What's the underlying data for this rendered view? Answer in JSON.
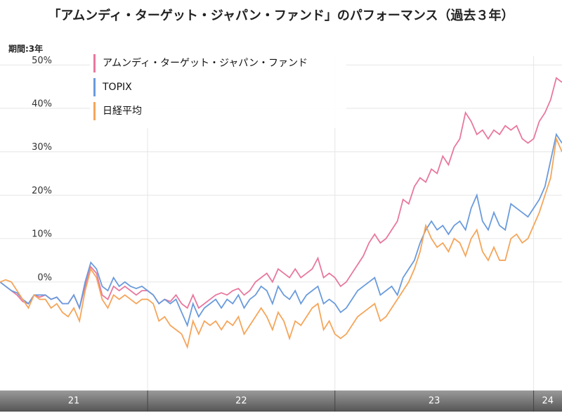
{
  "chart_data": {
    "type": "line",
    "title": "「アムンディ・ターゲット・ジャパン・ファンド」のパフォーマンス（過去３年）",
    "subtitle": "期間:3年",
    "xlim": [
      0,
      99
    ],
    "xticks": [
      {
        "value": 0,
        "label": "21"
      },
      {
        "value": 26,
        "label": "22"
      },
      {
        "value": 59,
        "label": "23"
      },
      {
        "value": 94,
        "label": "24"
      }
    ],
    "ylim": [
      -25,
      52
    ],
    "yticks": [
      {
        "value": 0,
        "label": "0%"
      },
      {
        "value": 10,
        "label": "10%"
      },
      {
        "value": 20,
        "label": "20%"
      },
      {
        "value": 30,
        "label": "30%"
      },
      {
        "value": 40,
        "label": "40%"
      },
      {
        "value": 50,
        "label": "50%"
      }
    ],
    "grid": true,
    "legend": "top-left",
    "series": [
      {
        "name": "アムンディ・ターゲット・ジャパン・ファンド",
        "color": "#e8789e",
        "values": [
          0,
          -1,
          -2,
          -3,
          -4.5,
          -5,
          -3,
          -3.5,
          -3,
          -4,
          -3.5,
          -5,
          -5,
          -3,
          -6,
          -1,
          3.5,
          2,
          -3,
          -4,
          -1,
          -2,
          -1,
          -2,
          -3,
          -2,
          -2,
          -3,
          -5,
          -4,
          -4.5,
          -3,
          -5,
          -6,
          -3,
          -6,
          -5,
          -4,
          -3,
          -2.5,
          -3,
          -2,
          -1.5,
          -3,
          -2,
          0,
          1,
          2,
          0,
          3,
          2,
          1,
          3,
          1,
          2,
          3,
          5.5,
          1,
          2,
          1,
          -1,
          0,
          2,
          4,
          6,
          9,
          11,
          9,
          10,
          12,
          14,
          19,
          18,
          22,
          24,
          23,
          26,
          25,
          29,
          27,
          31,
          33,
          39,
          37,
          34,
          35,
          33,
          35,
          34,
          36,
          35,
          36,
          33,
          32,
          33,
          37,
          39,
          42,
          47,
          46
        ]
      },
      {
        "name": "TOPIX",
        "color": "#6a9bdc",
        "values": [
          0,
          -1,
          -2,
          -2.5,
          -4,
          -5,
          -3,
          -3,
          -3,
          -4,
          -3.5,
          -5,
          -5,
          -3,
          -6,
          0,
          4.5,
          3,
          -1,
          -2,
          1,
          -1,
          0,
          -1,
          -1.5,
          -1,
          -2,
          -3,
          -5,
          -4,
          -5,
          -4,
          -7,
          -10,
          -5,
          -8,
          -6,
          -5,
          -4,
          -6,
          -4,
          -5,
          -3,
          -6,
          -4,
          -3,
          -1,
          -2,
          -5,
          -1,
          -3,
          -4,
          -2,
          -5,
          -3,
          -2,
          -1,
          -5,
          -4,
          -5,
          -7,
          -6,
          -4,
          -2,
          -1,
          0,
          1,
          -3,
          -2,
          -1,
          -3,
          1,
          3,
          5,
          9,
          12,
          14,
          12,
          13,
          11,
          13,
          14,
          12,
          17,
          20,
          14,
          12,
          16,
          13,
          12,
          18,
          17,
          16,
          15,
          17,
          19,
          22,
          28,
          34,
          32
        ]
      },
      {
        "name": "日経平均",
        "color": "#f5a55a",
        "values": [
          0,
          0.5,
          0,
          -2,
          -4,
          -6,
          -3,
          -4,
          -4,
          -6,
          -5,
          -7,
          -8,
          -6,
          -9,
          -2,
          3,
          1,
          -4,
          -6,
          -3,
          -4,
          -3,
          -4,
          -5,
          -4,
          -4,
          -5,
          -9,
          -8,
          -10,
          -11,
          -12,
          -15,
          -9,
          -12,
          -9,
          -10,
          -9,
          -11,
          -9,
          -10,
          -8,
          -12,
          -10,
          -8,
          -6,
          -8,
          -11,
          -7,
          -9,
          -13,
          -9,
          -10,
          -8,
          -6,
          -5,
          -11,
          -9,
          -12,
          -13,
          -12,
          -10,
          -8,
          -7,
          -6,
          -5,
          -9,
          -8,
          -6,
          -4,
          -2,
          0,
          3,
          7,
          13,
          10,
          8,
          9,
          7,
          10,
          9,
          6,
          10,
          12,
          7,
          5,
          8,
          5,
          5,
          10,
          11,
          9,
          10,
          13,
          16,
          20,
          24,
          33,
          30
        ]
      }
    ]
  }
}
